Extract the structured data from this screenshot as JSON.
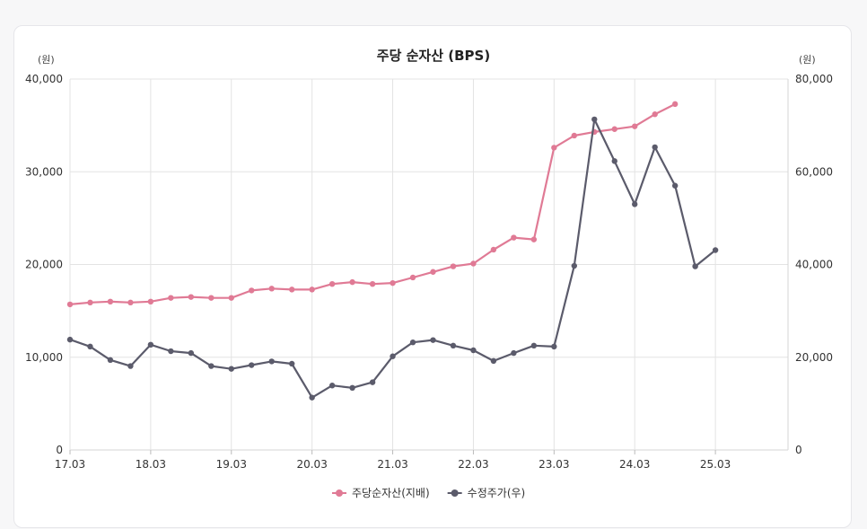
{
  "chart_data": {
    "type": "line",
    "title": "주당 순자산 (BPS)",
    "left_unit": "(원)",
    "right_unit": "(원)",
    "x_tick_labels": [
      "17.03",
      "18.03",
      "19.03",
      "20.03",
      "21.03",
      "22.03",
      "23.03",
      "24.03",
      "25.03"
    ],
    "y_left_ticks": [
      "0",
      "10,000",
      "20,000",
      "30,000",
      "40,000"
    ],
    "y_right_ticks": [
      "0",
      "20,000",
      "40,000",
      "60,000",
      "80,000"
    ],
    "y_left_lim": [
      0,
      40000
    ],
    "y_right_lim": [
      0,
      80000
    ],
    "grid": true,
    "legend_position": "bottom",
    "series": [
      {
        "name": "주당순자산(지배)",
        "axis": "left",
        "color": "#e07a95",
        "values": [
          15700,
          15900,
          16000,
          15900,
          16000,
          16400,
          16500,
          16400,
          16400,
          17200,
          17400,
          17300,
          17300,
          17900,
          18100,
          17900,
          18000,
          18600,
          19200,
          19800,
          20100,
          21600,
          22900,
          22700,
          32600,
          33900,
          34300,
          34600,
          34900,
          36200,
          37300
        ]
      },
      {
        "name": "수정주가(우)",
        "axis": "right",
        "color": "#5b5b6b",
        "values": [
          23800,
          22300,
          19400,
          18100,
          22700,
          21300,
          20900,
          18100,
          17500,
          18300,
          19100,
          18600,
          11300,
          13900,
          13400,
          14600,
          20200,
          23200,
          23700,
          22500,
          21500,
          19200,
          20900,
          22500,
          22300,
          39700,
          71300,
          62300,
          53000,
          65300,
          57000,
          39600,
          43100
        ]
      }
    ]
  }
}
